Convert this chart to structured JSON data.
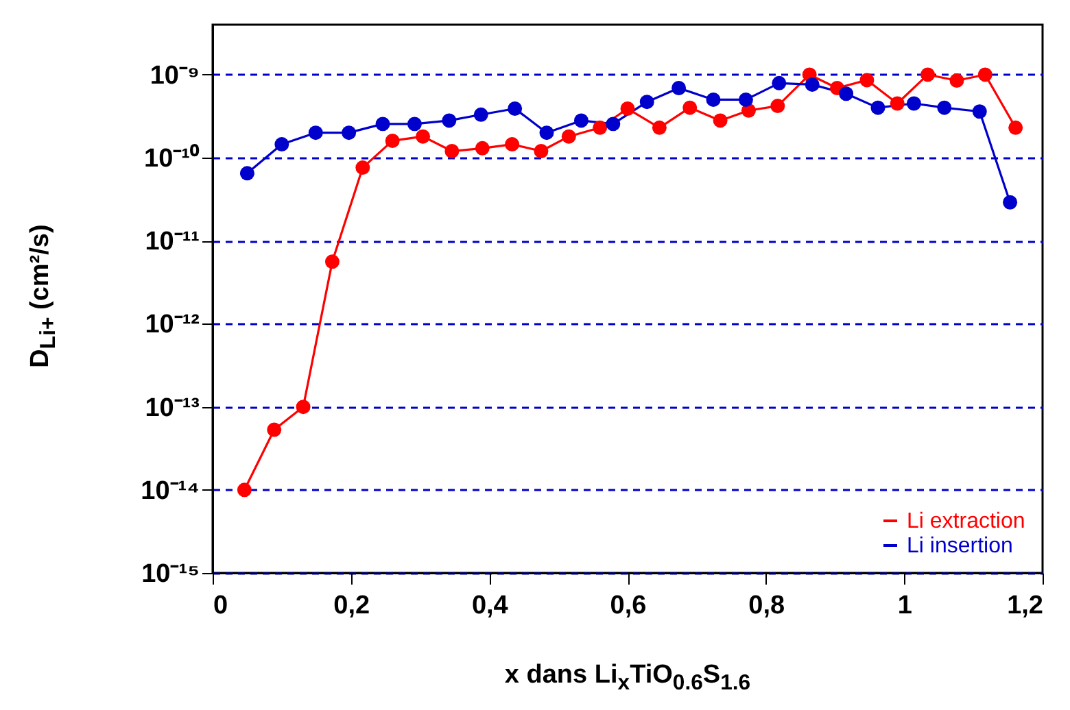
{
  "chart_data": {
    "type": "line",
    "xlabel": "x dans Li$_{x}$TiO$_{0.6}$S$_{1.6}$",
    "ylabel": "D$_{Li+}$ (cm²/s)",
    "series": [
      {
        "name": "Li extraction",
        "color": "#ff0000",
        "x": [
          0.046,
          0.089,
          0.131,
          0.173,
          0.217,
          0.26,
          0.304,
          0.346,
          0.39,
          0.433,
          0.475,
          0.515,
          0.56,
          0.6,
          0.646,
          0.69,
          0.734,
          0.775,
          0.817,
          0.863,
          0.903,
          0.946,
          0.99,
          1.034,
          1.076,
          1.117,
          1.161
        ],
        "values": [
          1e-14,
          5.3e-14,
          1e-13,
          5.6e-12,
          7.6e-11,
          1.6e-10,
          1.8e-10,
          1.2e-10,
          1.3e-10,
          1.45e-10,
          1.2e-10,
          1.8e-10,
          2.3e-10,
          3.9e-10,
          2.3e-10,
          4e-10,
          2.8e-10,
          3.7e-10,
          4.2e-10,
          1e-09,
          6.9e-10,
          8.6e-10,
          4.5e-10,
          1e-09,
          8.5e-10,
          1e-09,
          2.3e-10
        ]
      },
      {
        "name": "Li insertion",
        "color": "#0000cc",
        "x": [
          0.05,
          0.1,
          0.149,
          0.197,
          0.246,
          0.292,
          0.342,
          0.388,
          0.437,
          0.483,
          0.533,
          0.579,
          0.628,
          0.674,
          0.724,
          0.771,
          0.819,
          0.867,
          0.916,
          0.962,
          1.014,
          1.058,
          1.109,
          1.153
        ],
        "values": [
          6.5e-11,
          1.45e-10,
          2e-10,
          2e-10,
          2.55e-10,
          2.55e-10,
          2.8e-10,
          3.3e-10,
          3.9e-10,
          2e-10,
          2.8e-10,
          2.55e-10,
          4.7e-10,
          6.9e-10,
          5e-10,
          5e-10,
          7.9e-10,
          7.6e-10,
          5.9e-10,
          4e-10,
          4.5e-10,
          4e-10,
          3.6e-10,
          2.9e-11
        ]
      }
    ],
    "xlim": [
      0,
      1.2
    ],
    "xticks": [
      0,
      {
        "value": 0.2,
        "label": "0,2"
      },
      {
        "value": 0.4,
        "label": "0,4"
      },
      {
        "value": 0.6,
        "label": "0,6"
      },
      {
        "value": 0.8,
        "label": "0,8"
      },
      1,
      {
        "value": 1.2,
        "label": "1,2"
      }
    ],
    "ylim": [
      1e-15,
      4e-09
    ],
    "yticks": [
      {
        "value": 1e-15,
        "label": "10⁻¹⁵"
      },
      {
        "value": 1e-14,
        "label": "10⁻¹⁴"
      },
      {
        "value": 1e-13,
        "label": "10⁻¹³"
      },
      {
        "value": 1e-12,
        "label": "10⁻¹²"
      },
      {
        "value": 1e-11,
        "label": "10⁻¹¹"
      },
      {
        "value": 1e-10,
        "label": "10⁻¹⁰"
      },
      {
        "value": 1e-09,
        "label": "10⁻⁹"
      }
    ],
    "log": "y",
    "grid": "y",
    "legend": "bottom right",
    "marker": "circle",
    "line_style": "solid"
  }
}
